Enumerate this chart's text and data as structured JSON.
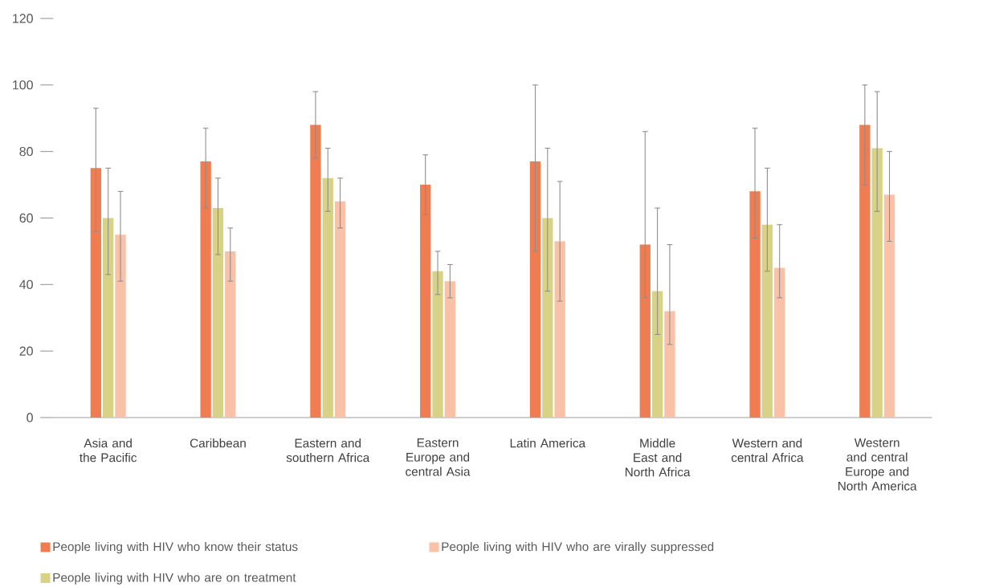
{
  "chart_data": {
    "type": "bar",
    "categories": [
      "Asia and the Pacific",
      "Caribbean",
      "Eastern and southern Africa",
      "Eastern Europe and central Asia",
      "Latin America",
      "Middle East and North Africa",
      "Western and central Africa",
      "Western and central Europe and North America"
    ],
    "series": [
      {
        "name": "People living with HIV who know their status",
        "color": "#ef7d51",
        "values": [
          75,
          77,
          88,
          70,
          77,
          52,
          68,
          88
        ],
        "errors": [
          [
            56,
            93
          ],
          [
            63,
            87
          ],
          [
            78,
            98
          ],
          [
            61,
            79
          ],
          [
            50,
            100
          ],
          [
            36,
            86
          ],
          [
            54,
            87
          ],
          [
            70,
            100
          ]
        ]
      },
      {
        "name": "People living with HIV who are on treatment",
        "color": "#d8d287",
        "values": [
          60,
          63,
          72,
          44,
          60,
          38,
          58,
          81
        ],
        "errors": [
          [
            43,
            75
          ],
          [
            49,
            72
          ],
          [
            62,
            81
          ],
          [
            37,
            50
          ],
          [
            38,
            81
          ],
          [
            25,
            63
          ],
          [
            44,
            75
          ],
          [
            62,
            98
          ]
        ]
      },
      {
        "name": "People living with HIV who are virally suppressed",
        "color": "#f8c1a8",
        "values": [
          55,
          50,
          65,
          41,
          53,
          32,
          45,
          67
        ],
        "errors": [
          [
            41,
            68
          ],
          [
            41,
            57
          ],
          [
            57,
            72
          ],
          [
            36,
            46
          ],
          [
            35,
            71
          ],
          [
            22,
            52
          ],
          [
            36,
            58
          ],
          [
            53,
            80
          ]
        ]
      }
    ],
    "ylim": [
      0,
      120
    ],
    "yticks": [
      0,
      20,
      40,
      60,
      80,
      100,
      120
    ],
    "legend": "bottom left"
  }
}
